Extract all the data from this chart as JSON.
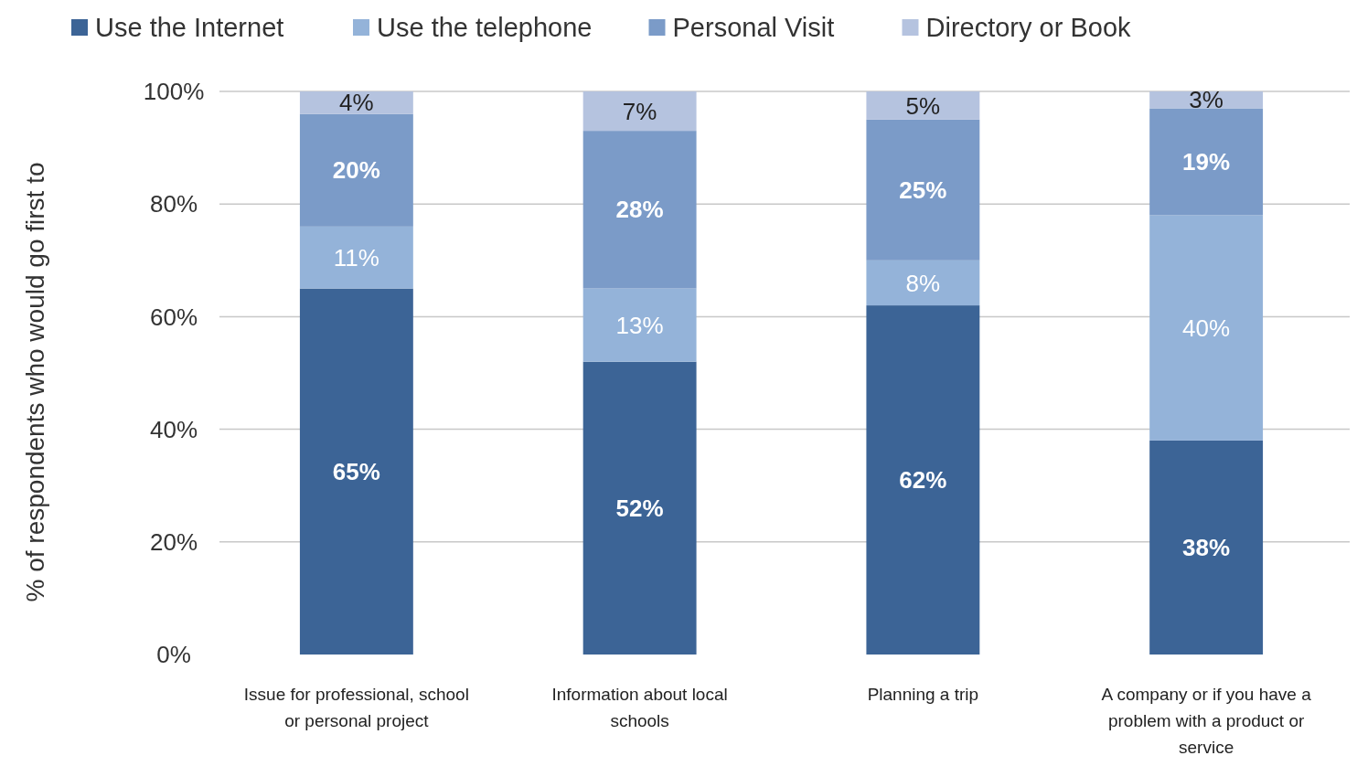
{
  "chart_data": {
    "type": "bar",
    "stacked": true,
    "ylabel": "% of respondents who would go first to",
    "categories": [
      "Issue for professional, school or personal project",
      "Information about local schools",
      "Planning a trip",
      "A company or if you have a problem with a product or service"
    ],
    "series": [
      {
        "name": "Use the Internet",
        "color": "#3c6496",
        "values": [
          65,
          52,
          62,
          38
        ],
        "value_labels": [
          "65%",
          "52%",
          "62%",
          "38%"
        ]
      },
      {
        "name": "Use the telephone",
        "color": "#94b3d9",
        "values": [
          11,
          13,
          8,
          40
        ],
        "value_labels": [
          "11%",
          "13%",
          "8%",
          "40%"
        ]
      },
      {
        "name": "Personal Visit",
        "color": "#7b9bc8",
        "values": [
          20,
          28,
          25,
          19
        ],
        "value_labels": [
          "20%",
          "28%",
          "25%",
          "19%"
        ]
      },
      {
        "name": "Directory or Book",
        "color": "#b5c3df",
        "values": [
          4,
          7,
          5,
          3
        ],
        "value_labels": [
          "4%",
          "7%",
          "5%",
          "3%"
        ]
      }
    ],
    "ylim": [
      0,
      100
    ],
    "yticks": [
      {
        "value": 0,
        "label": "0%"
      },
      {
        "value": 20,
        "label": "20%"
      },
      {
        "value": 40,
        "label": "40%"
      },
      {
        "value": 60,
        "label": "60%"
      },
      {
        "value": 80,
        "label": "80%"
      },
      {
        "value": 100,
        "label": "100%"
      }
    ],
    "grid": "y",
    "legend": "top"
  }
}
